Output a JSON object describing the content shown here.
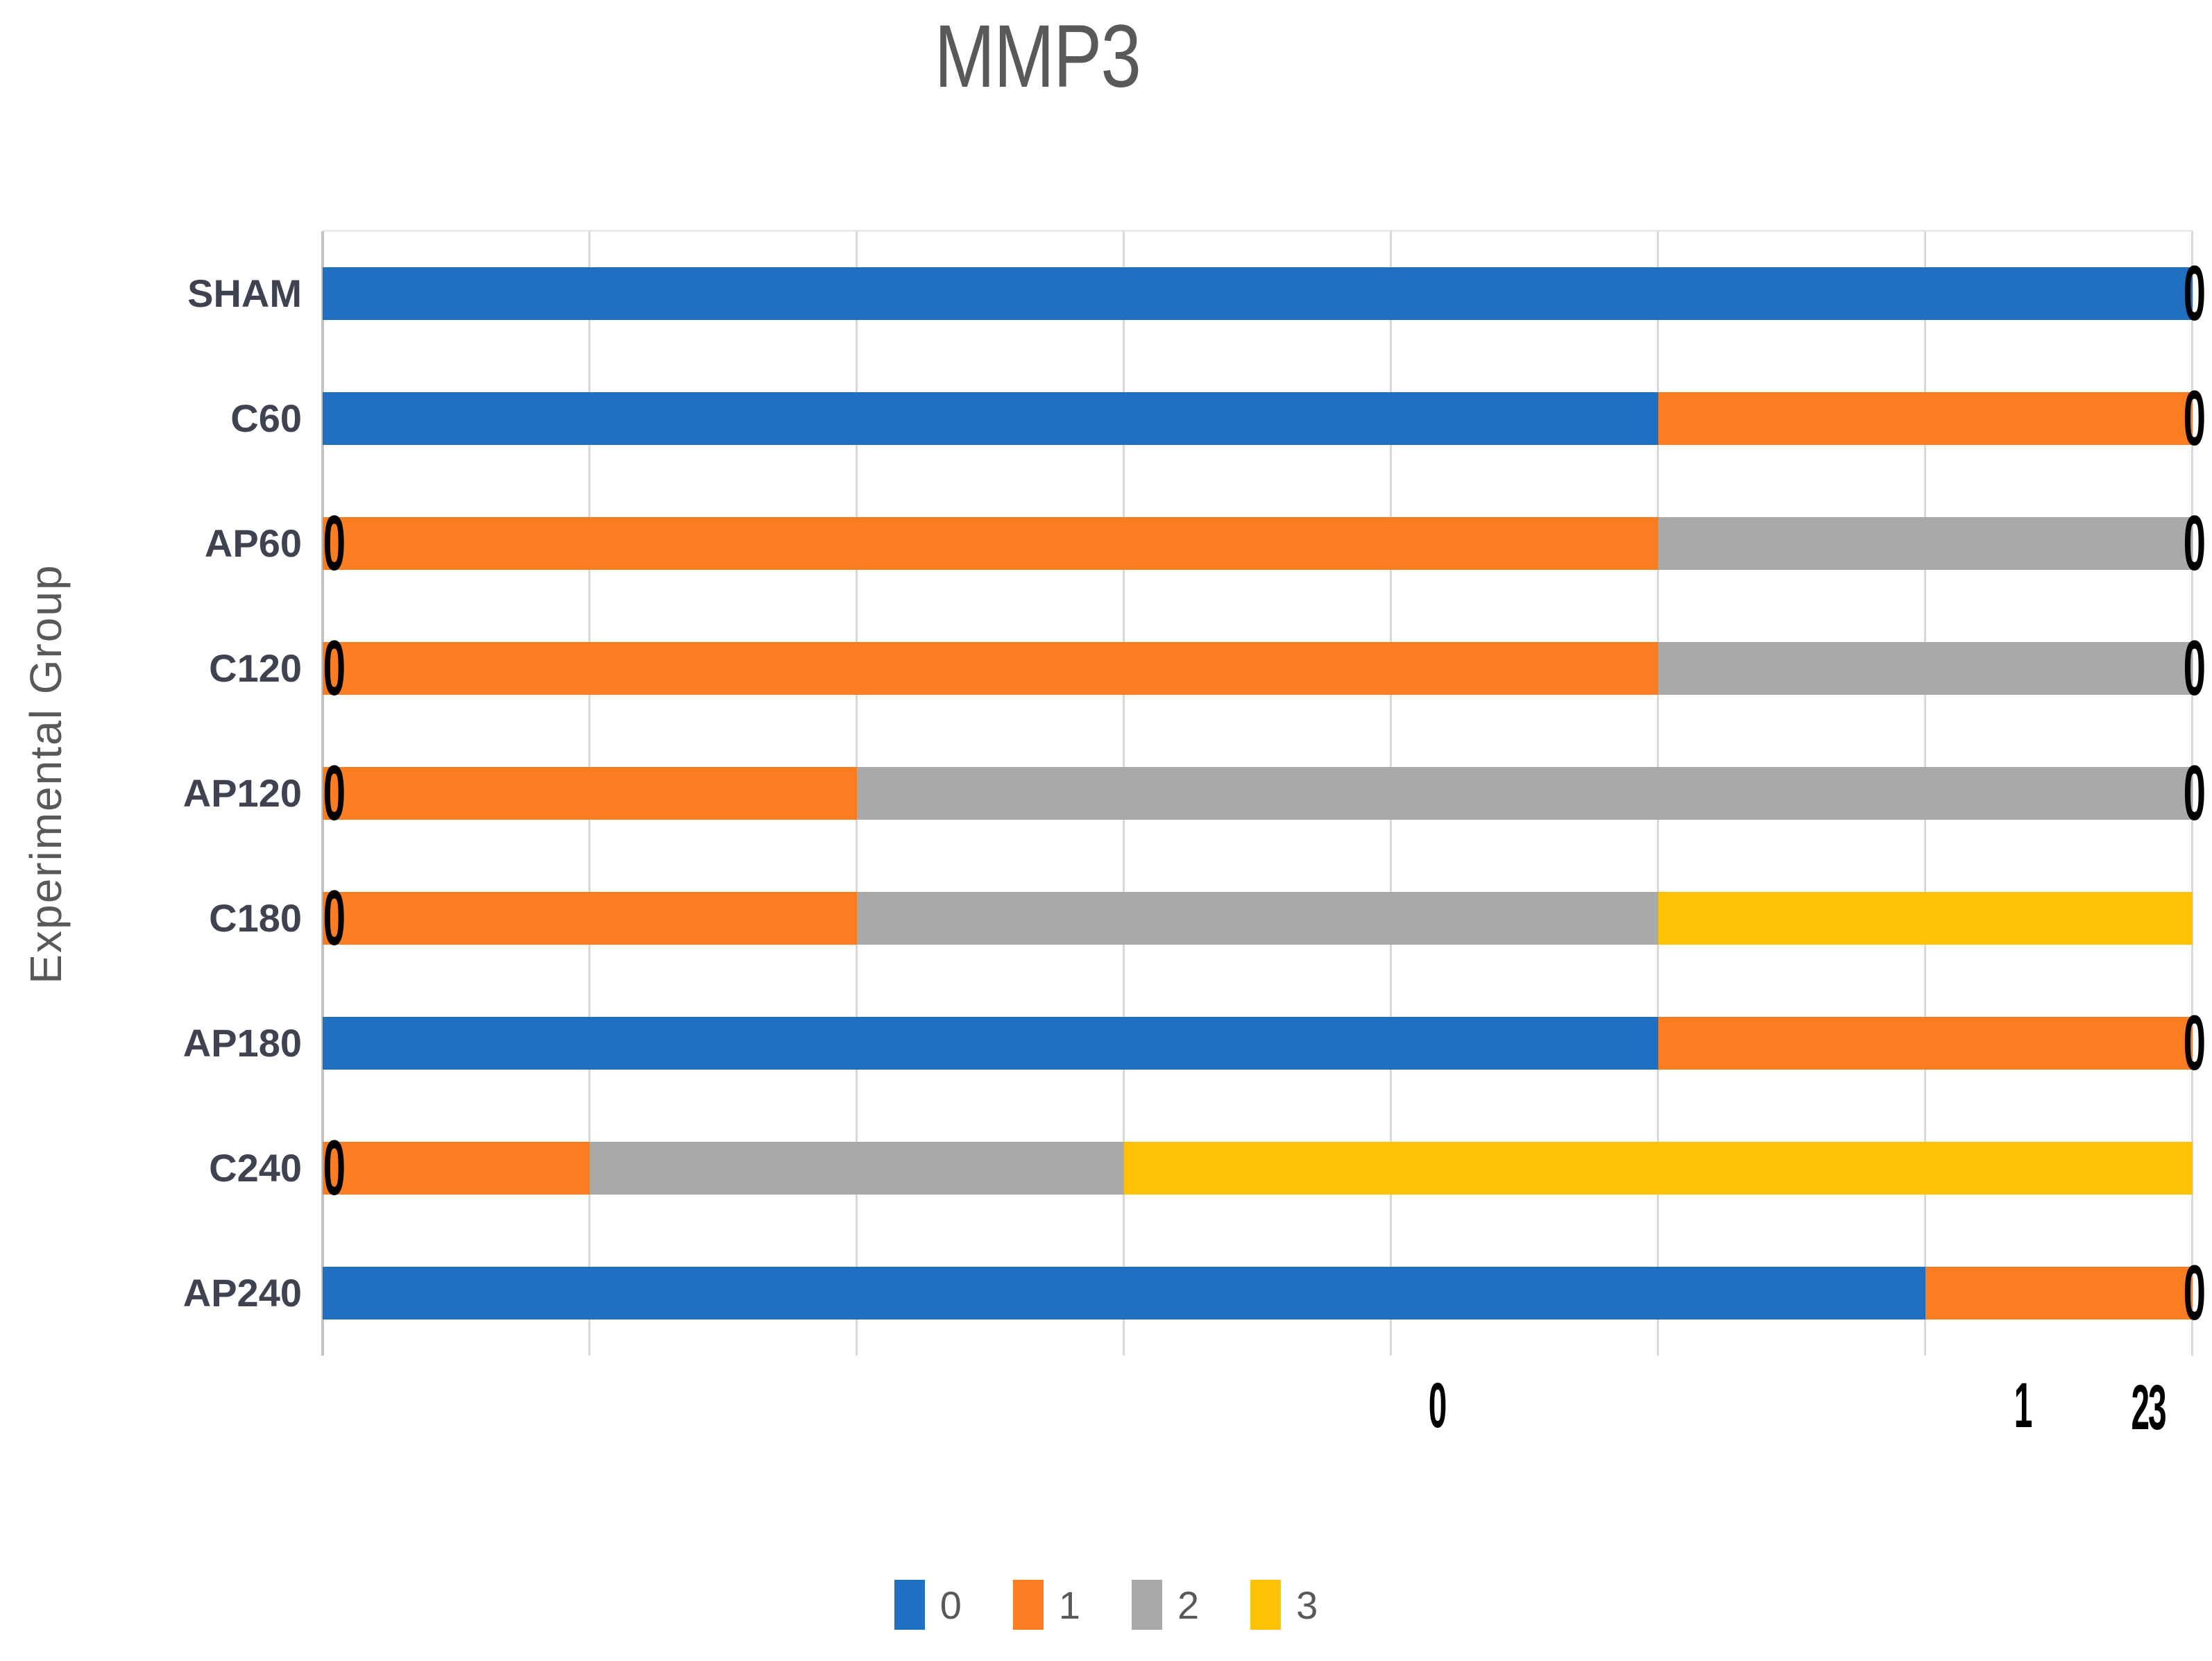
{
  "title": "MMP3",
  "y_axis_title": "Experimental Group",
  "colors": {
    "series0_blue": "#1f70c1",
    "series1_orange": "#fa7d22",
    "series2_gray": "#a9a9a9",
    "series3_yellow": "#ffc103",
    "gridline": "#d9d9d9",
    "axis_line": "#c3c3c3",
    "title_text": "#595959",
    "category_text": "#3f4250",
    "data_label_text": "#000000"
  },
  "legend": {
    "items": [
      {
        "label": "0",
        "color": "#1f70c1"
      },
      {
        "label": "1",
        "color": "#fa7d22"
      },
      {
        "label": "2",
        "color": "#a9a9a9"
      },
      {
        "label": "3",
        "color": "#ffc103"
      }
    ]
  },
  "chart_data": {
    "type": "bar",
    "orientation": "horizontal",
    "stacked": true,
    "title": "MMP3",
    "xlabel": "",
    "ylabel": "Experimental Group",
    "categories": [
      "SHAM",
      "C60",
      "AP60",
      "C120",
      "AP120",
      "C180",
      "AP180",
      "C240",
      "AP240"
    ],
    "series": [
      {
        "name": "0",
        "color": "#1f70c1",
        "values": [
          7,
          5,
          0,
          0,
          0,
          0,
          5,
          0,
          6
        ]
      },
      {
        "name": "1",
        "color": "#fa7d22",
        "values": [
          0,
          2,
          5,
          5,
          2,
          2,
          2,
          1,
          1
        ]
      },
      {
        "name": "2",
        "color": "#a9a9a9",
        "values": [
          0,
          0,
          2,
          2,
          5,
          3,
          0,
          2,
          0
        ]
      },
      {
        "name": "3",
        "color": "#ffc103",
        "values": [
          0,
          0,
          0,
          0,
          0,
          2,
          0,
          4,
          0
        ]
      }
    ],
    "group_total": 7,
    "xlim": [
      0,
      7
    ],
    "gridline_interval": 1,
    "grid_on": true,
    "legend_position": "bottom",
    "zero_value_label_text": "0",
    "stray_axis_labels": [
      {
        "text": "0",
        "x": 2071,
        "y": 2025
      },
      {
        "text": "1",
        "x": 2915,
        "y": 2025
      },
      {
        "text": "23",
        "x": 3096,
        "y": 2028
      }
    ]
  }
}
